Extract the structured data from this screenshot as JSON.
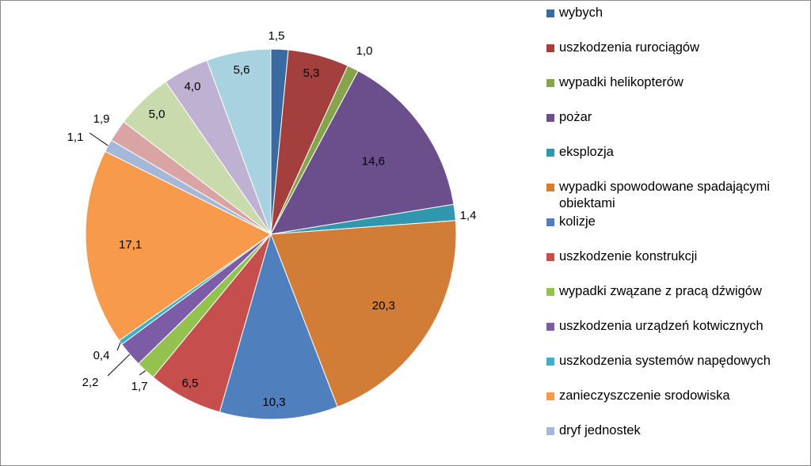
{
  "chart_data": {
    "type": "pie",
    "title": "",
    "legend_position": "right",
    "slices": [
      {
        "name": "wybych",
        "value": 1.5,
        "label": "1,5",
        "color": "#3a6aa2"
      },
      {
        "name": "uszkodzenia rurociągów",
        "value": 5.3,
        "label": "5,3",
        "color": "#a3403e"
      },
      {
        "name": "wypadki helikopterów",
        "value": 1.0,
        "label": "1,0",
        "color": "#86a54a"
      },
      {
        "name": "pożar",
        "value": 14.6,
        "label": "14,6",
        "color": "#6b4f8c"
      },
      {
        "name": "eksplozja",
        "value": 1.4,
        "label": "1,4",
        "color": "#3197ae"
      },
      {
        "name": "wypadki spowodowane spadającymi obiektami",
        "value": 20.3,
        "label": "20,3",
        "color": "#d17c37"
      },
      {
        "name": "kolizje",
        "value": 10.3,
        "label": "10,3",
        "color": "#4f7fbd"
      },
      {
        "name": "uszkodzenie konstrukcji",
        "value": 6.5,
        "label": "6,5",
        "color": "#c64e4c"
      },
      {
        "name": "wypadki zwązane z pracą dźwigów",
        "value": 1.7,
        "label": "1,7",
        "color": "#93c24f"
      },
      {
        "name": "uszkodzenia urządzeń kotwicznych",
        "value": 2.2,
        "label": "2,2",
        "color": "#7c5ba7"
      },
      {
        "name": "uszkodzenia systemów napędowych",
        "value": 0.4,
        "label": "0,4",
        "color": "#3bb0cc"
      },
      {
        "name": "zanieczyszczenie srodowiska",
        "value": 17.1,
        "label": "17,1",
        "color": "#f79a4b"
      },
      {
        "name": "dryf jednostek",
        "value": 1.1,
        "label": "1,1",
        "color": "#a5b8d9"
      },
      {
        "name": "",
        "value": 1.9,
        "label": "1,9",
        "color": "#dba4a4"
      },
      {
        "name": "",
        "value": 5.0,
        "label": "5,0",
        "color": "#c9dbac"
      },
      {
        "name": "",
        "value": 4.0,
        "label": "4,0",
        "color": "#bfb1d1"
      },
      {
        "name": "",
        "value": 5.6,
        "label": "5,6",
        "color": "#a8d2e0"
      }
    ]
  }
}
